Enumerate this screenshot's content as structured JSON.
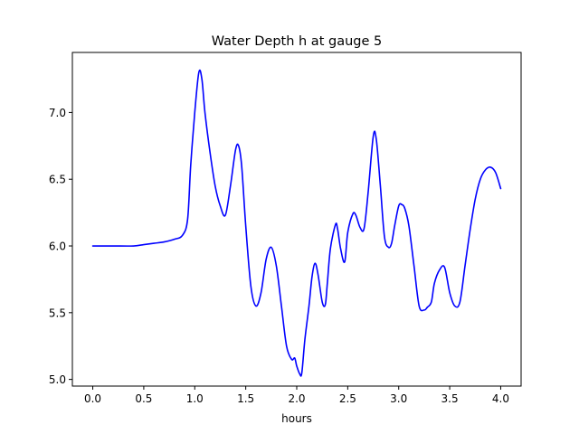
{
  "chart_data": {
    "type": "line",
    "title": "Water Depth h at gauge 5",
    "xlabel": "hours",
    "ylabel": "",
    "xlim": [
      -0.2,
      4.2
    ],
    "ylim": [
      4.95,
      7.45
    ],
    "xticks": [
      0.0,
      0.5,
      1.0,
      1.5,
      2.0,
      2.5,
      3.0,
      3.5,
      4.0
    ],
    "xtick_labels": [
      "0.0",
      "0.5",
      "1.0",
      "1.5",
      "2.0",
      "2.5",
      "3.0",
      "3.5",
      "4.0"
    ],
    "yticks": [
      5.0,
      5.5,
      6.0,
      6.5,
      7.0
    ],
    "ytick_labels": [
      "5.0",
      "5.5",
      "6.0",
      "6.5",
      "7.0"
    ],
    "grid": false,
    "series": [
      {
        "color": "#0000ff",
        "x": [
          0.0,
          0.2,
          0.4,
          0.5,
          0.6,
          0.7,
          0.8,
          0.88,
          0.93,
          0.96,
          1.0,
          1.04,
          1.07,
          1.1,
          1.15,
          1.2,
          1.25,
          1.3,
          1.35,
          1.4,
          1.43,
          1.46,
          1.5,
          1.55,
          1.6,
          1.65,
          1.7,
          1.75,
          1.8,
          1.85,
          1.9,
          1.95,
          1.98,
          2.0,
          2.03,
          2.05,
          2.08,
          2.12,
          2.15,
          2.18,
          2.21,
          2.25,
          2.28,
          2.3,
          2.33,
          2.38,
          2.4,
          2.43,
          2.47,
          2.5,
          2.55,
          2.58,
          2.62,
          2.66,
          2.7,
          2.75,
          2.78,
          2.82,
          2.86,
          2.9,
          2.93,
          2.96,
          3.0,
          3.03,
          3.06,
          3.1,
          3.15,
          3.2,
          3.25,
          3.28,
          3.32,
          3.35,
          3.4,
          3.45,
          3.5,
          3.55,
          3.6,
          3.65,
          3.7,
          3.75,
          3.8,
          3.85,
          3.9,
          3.95,
          4.0
        ],
        "y": [
          6.0,
          6.0,
          6.0,
          6.01,
          6.02,
          6.03,
          6.05,
          6.08,
          6.2,
          6.6,
          7.0,
          7.3,
          7.25,
          7.0,
          6.7,
          6.45,
          6.3,
          6.23,
          6.45,
          6.72,
          6.75,
          6.6,
          6.15,
          5.7,
          5.55,
          5.65,
          5.9,
          5.99,
          5.85,
          5.55,
          5.25,
          5.15,
          5.16,
          5.1,
          5.04,
          5.05,
          5.3,
          5.55,
          5.77,
          5.87,
          5.78,
          5.58,
          5.56,
          5.72,
          5.98,
          6.16,
          6.13,
          5.98,
          5.88,
          6.1,
          6.24,
          6.23,
          6.14,
          6.13,
          6.4,
          6.82,
          6.8,
          6.45,
          6.07,
          5.99,
          6.02,
          6.15,
          6.3,
          6.31,
          6.28,
          6.15,
          5.85,
          5.55,
          5.52,
          5.54,
          5.58,
          5.72,
          5.82,
          5.84,
          5.65,
          5.55,
          5.58,
          5.85,
          6.12,
          6.35,
          6.5,
          6.57,
          6.59,
          6.55,
          6.43
        ]
      }
    ]
  }
}
